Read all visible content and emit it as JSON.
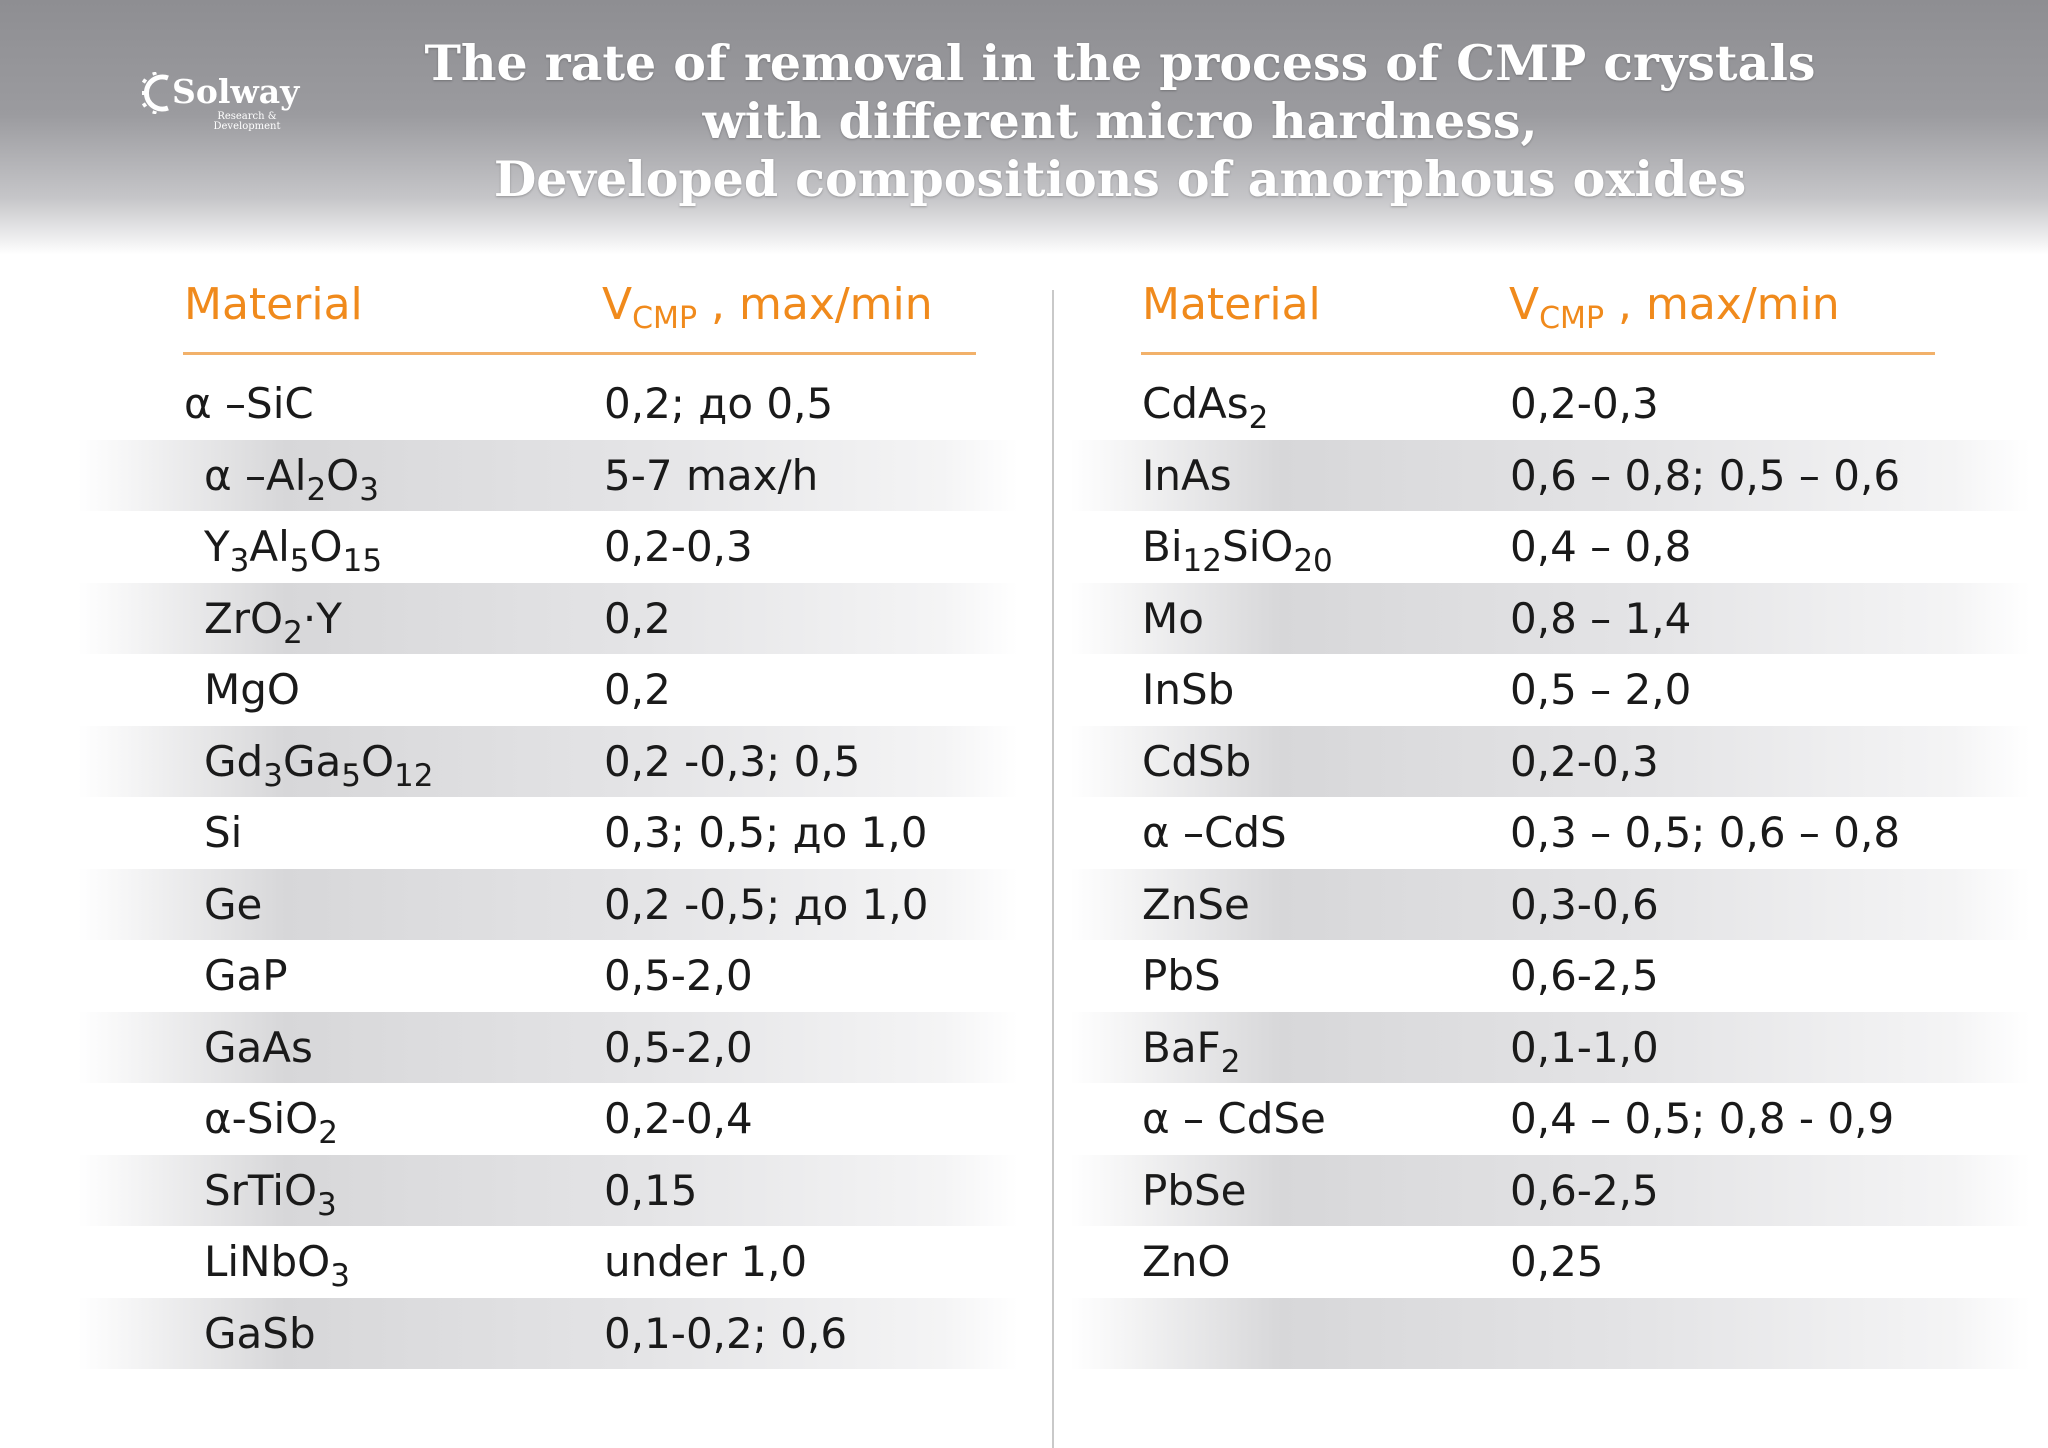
{
  "header": {
    "logo": {
      "brand": "Solway",
      "subtitle_line1": "Research &",
      "subtitle_line2": "Development"
    },
    "title_lines": [
      "The rate of removal in the process of CMP crystals",
      "with different micro hardness,",
      "Developed compositions of amorphous oxides"
    ]
  },
  "colors": {
    "accent": "#f08a1c",
    "header_gray": "#8e8e92",
    "row_band": "#d7d7d9",
    "text": "#1a1a1a"
  },
  "tables": {
    "left": {
      "columns": {
        "material": "Material",
        "rate_main": "V",
        "rate_sub": "CMP",
        "rate_tail": " , max/min"
      },
      "rows": [
        {
          "material": [
            {
              "t": "α –SiC"
            }
          ],
          "value": "0,2;  до 0,5"
        },
        {
          "material": [
            {
              "t": "α –Al"
            },
            {
              "t": "2",
              "sub": true
            },
            {
              "t": "O"
            },
            {
              "t": "3",
              "sub": true
            }
          ],
          "value": "5-7 max/h"
        },
        {
          "material": [
            {
              "t": "Y"
            },
            {
              "t": "3",
              "sub": true
            },
            {
              "t": "Al"
            },
            {
              "t": "5",
              "sub": true
            },
            {
              "t": "O"
            },
            {
              "t": "15",
              "sub": true
            }
          ],
          "value": "0,2-0,3"
        },
        {
          "material": [
            {
              "t": "ZrO"
            },
            {
              "t": "2",
              "sub": true
            },
            {
              "t": "·Y"
            }
          ],
          "value": "0,2"
        },
        {
          "material": [
            {
              "t": "MgO"
            }
          ],
          "value": "0,2"
        },
        {
          "material": [
            {
              "t": "Gd"
            },
            {
              "t": "3",
              "sub": true
            },
            {
              "t": "Ga"
            },
            {
              "t": "5",
              "sub": true
            },
            {
              "t": "O"
            },
            {
              "t": "12",
              "sub": true
            }
          ],
          "value": "0,2 -0,3; 0,5"
        },
        {
          "material": [
            {
              "t": "Si"
            }
          ],
          "value": "0,3; 0,5;  до 1,0"
        },
        {
          "material": [
            {
              "t": "Ge"
            }
          ],
          "value": "0,2 -0,5; до 1,0"
        },
        {
          "material": [
            {
              "t": "GaP"
            }
          ],
          "value": "0,5-2,0"
        },
        {
          "material": [
            {
              "t": "GaAs"
            }
          ],
          "value": "0,5-2,0"
        },
        {
          "material": [
            {
              "t": "α-SiO"
            },
            {
              "t": "2",
              "sub": true
            }
          ],
          "value": "0,2-0,4"
        },
        {
          "material": [
            {
              "t": "SrTiO"
            },
            {
              "t": "3",
              "sub": true
            }
          ],
          "value": "0,15"
        },
        {
          "material": [
            {
              "t": "LiNbO"
            },
            {
              "t": "3",
              "sub": true
            }
          ],
          "value": "under 1,0"
        },
        {
          "material": [
            {
              "t": "GaSb"
            }
          ],
          "value": "0,1-0,2; 0,6"
        }
      ]
    },
    "right": {
      "columns": {
        "material": "Material",
        "rate_main": "V",
        "rate_sub": "CMP",
        "rate_tail": " , max/min"
      },
      "rows": [
        {
          "material": [
            {
              "t": "CdAs"
            },
            {
              "t": "2",
              "sub": true
            }
          ],
          "value": "0,2-0,3"
        },
        {
          "material": [
            {
              "t": "InAs"
            }
          ],
          "value": "0,6 – 0,8; 0,5 – 0,6"
        },
        {
          "material": [
            {
              "t": "Bi"
            },
            {
              "t": "12",
              "sub": true
            },
            {
              "t": "SiO"
            },
            {
              "t": "20",
              "sub": true
            }
          ],
          "value": "0,4 – 0,8"
        },
        {
          "material": [
            {
              "t": "Mo"
            }
          ],
          "value": "0,8 – 1,4"
        },
        {
          "material": [
            {
              "t": "InSb"
            }
          ],
          "value": "0,5 – 2,0"
        },
        {
          "material": [
            {
              "t": "CdSb"
            }
          ],
          "value": "0,2-0,3"
        },
        {
          "material": [
            {
              "t": "α –CdS"
            }
          ],
          "value": "0,3 – 0,5; 0,6 – 0,8"
        },
        {
          "material": [
            {
              "t": "ZnSe"
            }
          ],
          "value": "0,3-0,6"
        },
        {
          "material": [
            {
              "t": "PbS"
            }
          ],
          "value": "0,6-2,5"
        },
        {
          "material": [
            {
              "t": "BaF"
            },
            {
              "t": "2",
              "sub": true
            }
          ],
          "value": "0,1-1,0"
        },
        {
          "material": [
            {
              "t": "α – CdSe"
            }
          ],
          "value": "0,4 – 0,5; 0,8 - 0,9"
        },
        {
          "material": [
            {
              "t": "PbSe"
            }
          ],
          "value": "0,6-2,5"
        },
        {
          "material": [
            {
              "t": "ZnO"
            }
          ],
          "value": "0,25"
        },
        {
          "material": [
            {
              "t": ""
            }
          ],
          "value": ""
        }
      ]
    }
  }
}
